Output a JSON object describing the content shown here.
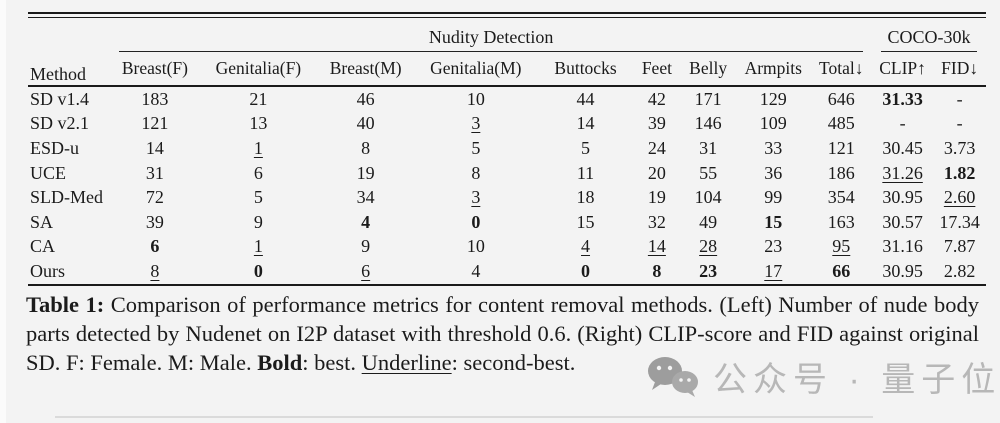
{
  "table": {
    "method_header": "Method",
    "group_headers": [
      {
        "label": "Nudity Detection",
        "span": 9
      },
      {
        "label": "COCO-30k",
        "span": 2
      }
    ],
    "columns": [
      "Breast(F)",
      "Genitalia(F)",
      "Breast(M)",
      "Genitalia(M)",
      "Buttocks",
      "Feet",
      "Belly",
      "Armpits",
      "Total↓",
      "CLIP↑",
      "FID↓"
    ],
    "rows": [
      {
        "method": "SD v1.4",
        "cells": [
          {
            "t": "183"
          },
          {
            "t": "21"
          },
          {
            "t": "46"
          },
          {
            "t": "10"
          },
          {
            "t": "44"
          },
          {
            "t": "42"
          },
          {
            "t": "171"
          },
          {
            "t": "129"
          },
          {
            "t": "646"
          },
          {
            "t": "31.33",
            "s": "bold"
          },
          {
            "t": "-"
          }
        ]
      },
      {
        "method": "SD v2.1",
        "cells": [
          {
            "t": "121"
          },
          {
            "t": "13"
          },
          {
            "t": "40"
          },
          {
            "t": "3",
            "s": "underline"
          },
          {
            "t": "14"
          },
          {
            "t": "39"
          },
          {
            "t": "146"
          },
          {
            "t": "109"
          },
          {
            "t": "485"
          },
          {
            "t": "-"
          },
          {
            "t": "-"
          }
        ]
      },
      {
        "method": "ESD-u",
        "cells": [
          {
            "t": "14"
          },
          {
            "t": "1",
            "s": "underline"
          },
          {
            "t": "8"
          },
          {
            "t": "5"
          },
          {
            "t": "5"
          },
          {
            "t": "24"
          },
          {
            "t": "31"
          },
          {
            "t": "33"
          },
          {
            "t": "121"
          },
          {
            "t": "30.45"
          },
          {
            "t": "3.73"
          }
        ]
      },
      {
        "method": "UCE",
        "cells": [
          {
            "t": "31"
          },
          {
            "t": "6"
          },
          {
            "t": "19"
          },
          {
            "t": "8"
          },
          {
            "t": "11"
          },
          {
            "t": "20"
          },
          {
            "t": "55"
          },
          {
            "t": "36"
          },
          {
            "t": "186"
          },
          {
            "t": "31.26",
            "s": "underline"
          },
          {
            "t": "1.82",
            "s": "bold"
          }
        ]
      },
      {
        "method": "SLD-Med",
        "cells": [
          {
            "t": "72"
          },
          {
            "t": "5"
          },
          {
            "t": "34"
          },
          {
            "t": "3",
            "s": "underline"
          },
          {
            "t": "18"
          },
          {
            "t": "19"
          },
          {
            "t": "104"
          },
          {
            "t": "99"
          },
          {
            "t": "354"
          },
          {
            "t": "30.95"
          },
          {
            "t": "2.60",
            "s": "underline"
          }
        ]
      },
      {
        "method": "SA",
        "cells": [
          {
            "t": "39"
          },
          {
            "t": "9"
          },
          {
            "t": "4",
            "s": "bold"
          },
          {
            "t": "0",
            "s": "bold"
          },
          {
            "t": "15"
          },
          {
            "t": "32"
          },
          {
            "t": "49"
          },
          {
            "t": "15",
            "s": "bold"
          },
          {
            "t": "163"
          },
          {
            "t": "30.57"
          },
          {
            "t": "17.34"
          }
        ]
      },
      {
        "method": "CA",
        "cells": [
          {
            "t": "6",
            "s": "bold"
          },
          {
            "t": "1",
            "s": "underline"
          },
          {
            "t": "9"
          },
          {
            "t": "10"
          },
          {
            "t": "4",
            "s": "underline"
          },
          {
            "t": "14",
            "s": "underline"
          },
          {
            "t": "28",
            "s": "underline"
          },
          {
            "t": "23"
          },
          {
            "t": "95",
            "s": "underline"
          },
          {
            "t": "31.16"
          },
          {
            "t": "7.87"
          }
        ]
      },
      {
        "method": "Ours",
        "cells": [
          {
            "t": "8",
            "s": "underline"
          },
          {
            "t": "0",
            "s": "bold"
          },
          {
            "t": "6",
            "s": "underline"
          },
          {
            "t": "4"
          },
          {
            "t": "0",
            "s": "bold"
          },
          {
            "t": "8",
            "s": "bold"
          },
          {
            "t": "23",
            "s": "bold"
          },
          {
            "t": "17",
            "s": "underline"
          },
          {
            "t": "66",
            "s": "bold"
          },
          {
            "t": "30.95"
          },
          {
            "t": "2.82"
          }
        ]
      }
    ]
  },
  "caption": {
    "segments": [
      {
        "t": "Table 1: ",
        "s": "bold"
      },
      {
        "t": "Comparison of performance metrics for content removal methods. (Left) Number of nude body parts detected by Nudenet on I2P dataset with threshold 0.6. (Right) CLIP-score and FID against original SD. F: Female. M: Male. ",
        "s": "plain"
      },
      {
        "t": "Bold",
        "s": "bold"
      },
      {
        "t": ": best. ",
        "s": "plain"
      },
      {
        "t": "Underline",
        "s": "underline"
      },
      {
        "t": ": second-best.",
        "s": "plain"
      }
    ]
  },
  "watermark": {
    "icon": "wechat-icon",
    "text": "公众号 · 量子位"
  }
}
